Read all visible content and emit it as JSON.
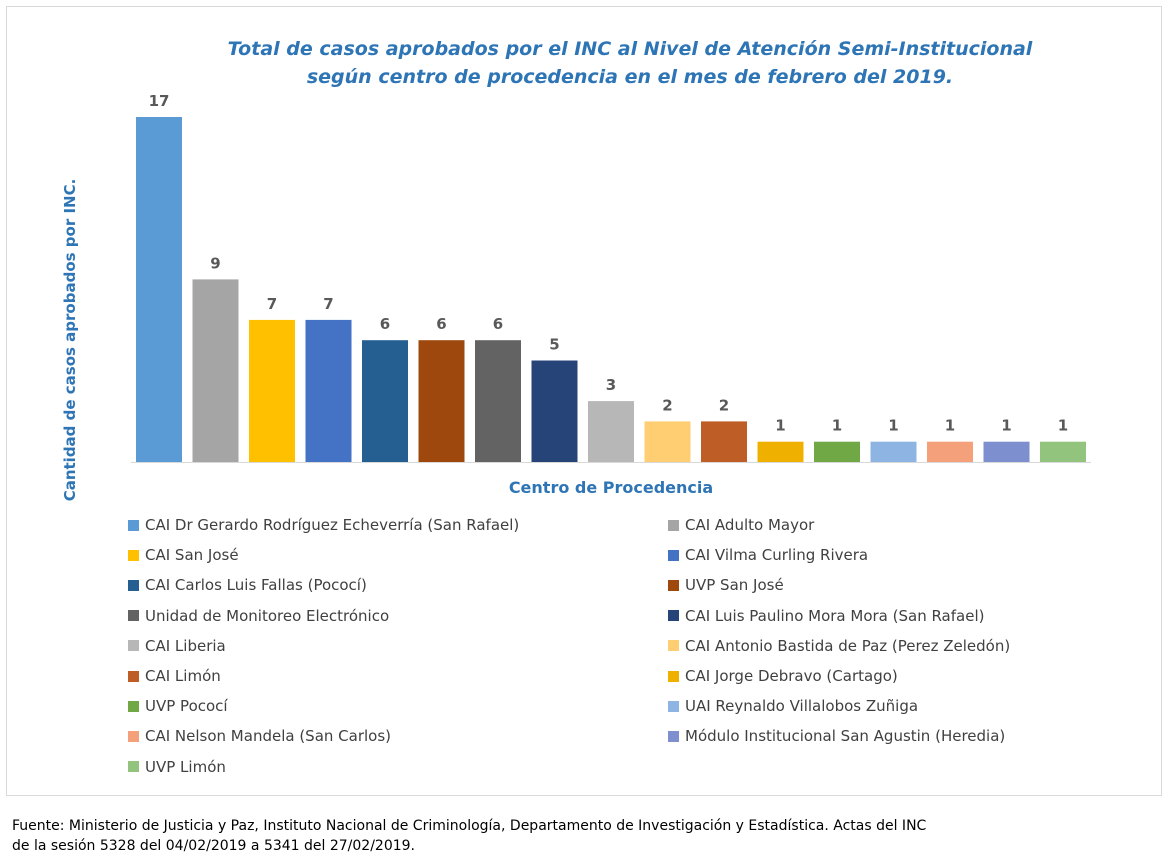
{
  "chart_data": {
    "type": "bar",
    "title_line1": "Total de casos aprobados por el INC al Nivel  de Atención Semi-Institucional",
    "title_line2": "según centro de procedencia en el mes de febrero del 2019.",
    "xlabel": "Centro de Procedencia",
    "ylabel": "Cantidad de casos aprobados por INC.",
    "ylim": [
      0,
      17
    ],
    "grid": false,
    "legend_placement": "bottom",
    "categories": [
      "CAI Dr Gerardo Rodríguez Echeverría (San Rafael)",
      "CAI Adulto Mayor",
      "CAI San José",
      "CAI Vilma Curling Rivera",
      "CAI Carlos Luis Fallas (Pococí)",
      "UVP San José",
      "Unidad de Monitoreo Electrónico",
      "CAI Luis Paulino Mora Mora (San Rafael)",
      "CAI Liberia",
      "CAI Antonio Bastida de Paz (Perez Zeledón)",
      "CAI Limón",
      "CAI Jorge Debravo (Cartago)",
      "UVP Pococí",
      "UAI Reynaldo Villalobos Zuñiga",
      "CAI Nelson Mandela (San Carlos)",
      "Módulo Institucional San Agustin (Heredia)",
      "UVP Limón"
    ],
    "values": [
      17,
      9,
      7,
      7,
      6,
      6,
      6,
      5,
      3,
      2,
      2,
      1,
      1,
      1,
      1,
      1,
      1
    ],
    "colors": [
      "#5b9bd5",
      "#a5a5a5",
      "#ffc000",
      "#4472c4",
      "#255e91",
      "#9e480e",
      "#636363",
      "#264478",
      "#b7b7b7",
      "#ffcd72",
      "#bf5d26",
      "#f0b000",
      "#70a845",
      "#8db4e2",
      "#f4a07a",
      "#7e8fd0",
      "#93c47d"
    ]
  },
  "source": {
    "line1": "Fuente: Ministerio de Justicia y Paz, Instituto Nacional de Criminología, Departamento de Investigación y Estadística. Actas del INC",
    "line2": "de la sesión 5328 del 04/02/2019 a 5341 del 27/02/2019."
  }
}
